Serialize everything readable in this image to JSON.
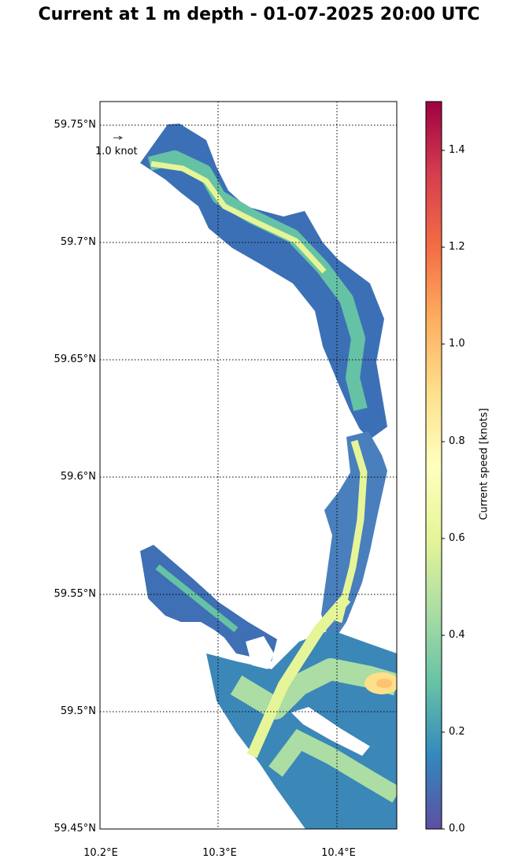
{
  "title": "Current at 1 m depth - 01-07-2025 20:00 UTC",
  "map": {
    "lat_ticks": [
      "59.75°N",
      "59.7°N",
      "59.65°N",
      "59.6°N",
      "59.55°N",
      "59.5°N",
      "59.45°N"
    ],
    "lon_ticks": [
      "10.2°E",
      "10.3°E",
      "10.4°E"
    ],
    "lat_range": [
      59.45,
      59.76
    ],
    "lon_range": [
      10.2,
      10.45
    ],
    "gridlines": "dotted",
    "reference_arrow_label": "1.0 knot"
  },
  "colorbar": {
    "label": "Current speed [knots]",
    "ticks": [
      "0.0",
      "0.2",
      "0.4",
      "0.6",
      "0.8",
      "1.0",
      "1.2",
      "1.4"
    ],
    "range": [
      0,
      1.5
    ],
    "colormap": "Spectral_r",
    "colors": [
      "#5e4fa2",
      "#3288bd",
      "#66c2a5",
      "#abdda4",
      "#e6f598",
      "#ffffbf",
      "#fee08b",
      "#fdae61",
      "#f46d43",
      "#d53e4f",
      "#9e0142"
    ]
  }
}
